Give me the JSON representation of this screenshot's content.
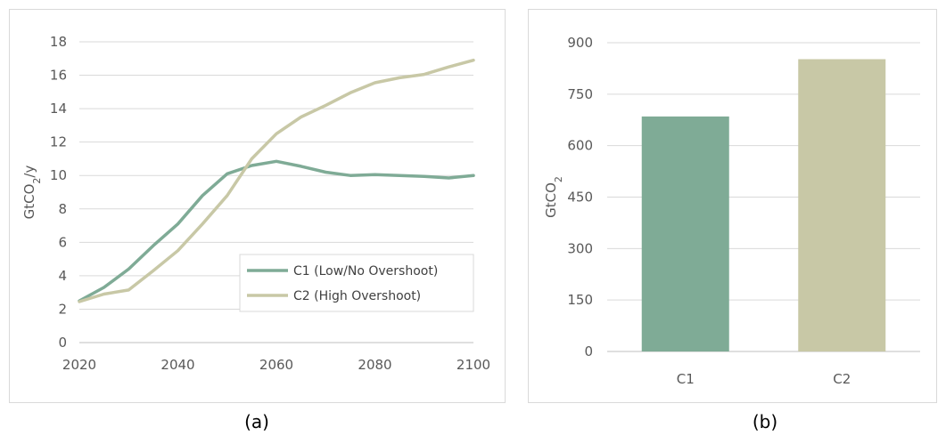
{
  "chart_data": [
    {
      "type": "line",
      "panel": "a",
      "title": "",
      "xlabel": "",
      "ylabel": "GtCO",
      "ylabel_sub": "2",
      "ylabel_suffix": "/y",
      "xlim": [
        2020,
        2100
      ],
      "ylim": [
        0,
        18
      ],
      "xticks": [
        2020,
        2040,
        2060,
        2080,
        2100
      ],
      "yticks": [
        0,
        2,
        4,
        6,
        8,
        10,
        12,
        14,
        16,
        18
      ],
      "grid": "horizontal",
      "legend_placement": "bottom-right",
      "x": [
        2020,
        2025,
        2030,
        2035,
        2040,
        2045,
        2050,
        2055,
        2060,
        2065,
        2070,
        2075,
        2080,
        2085,
        2090,
        2095,
        2100
      ],
      "series": [
        {
          "name": "C1 (Low/No Overshoot)",
          "color": "#7fab96",
          "values": [
            2.5,
            3.3,
            4.4,
            5.8,
            7.1,
            8.8,
            10.1,
            10.6,
            10.85,
            10.55,
            10.2,
            10.0,
            10.05,
            10.0,
            9.95,
            9.85,
            10.0
          ]
        },
        {
          "name": "C2 (High Overshoot)",
          "color": "#c8c8a6",
          "values": [
            2.45,
            2.9,
            3.15,
            4.3,
            5.5,
            7.1,
            8.8,
            11.0,
            12.5,
            13.5,
            14.2,
            14.95,
            15.55,
            15.85,
            16.05,
            16.5,
            16.9
          ]
        }
      ]
    },
    {
      "type": "bar",
      "panel": "b",
      "title": "",
      "xlabel": "",
      "ylabel": "GtCO",
      "ylabel_sub": "2",
      "ylim": [
        0,
        900
      ],
      "yticks": [
        0,
        150,
        300,
        450,
        600,
        750,
        900
      ],
      "grid": "horizontal",
      "categories": [
        "C1",
        "C2"
      ],
      "values": [
        685,
        852
      ],
      "colors": [
        "#7fab96",
        "#c8c8a6"
      ]
    }
  ],
  "captions": {
    "a": "(a)",
    "b": "(b)"
  }
}
